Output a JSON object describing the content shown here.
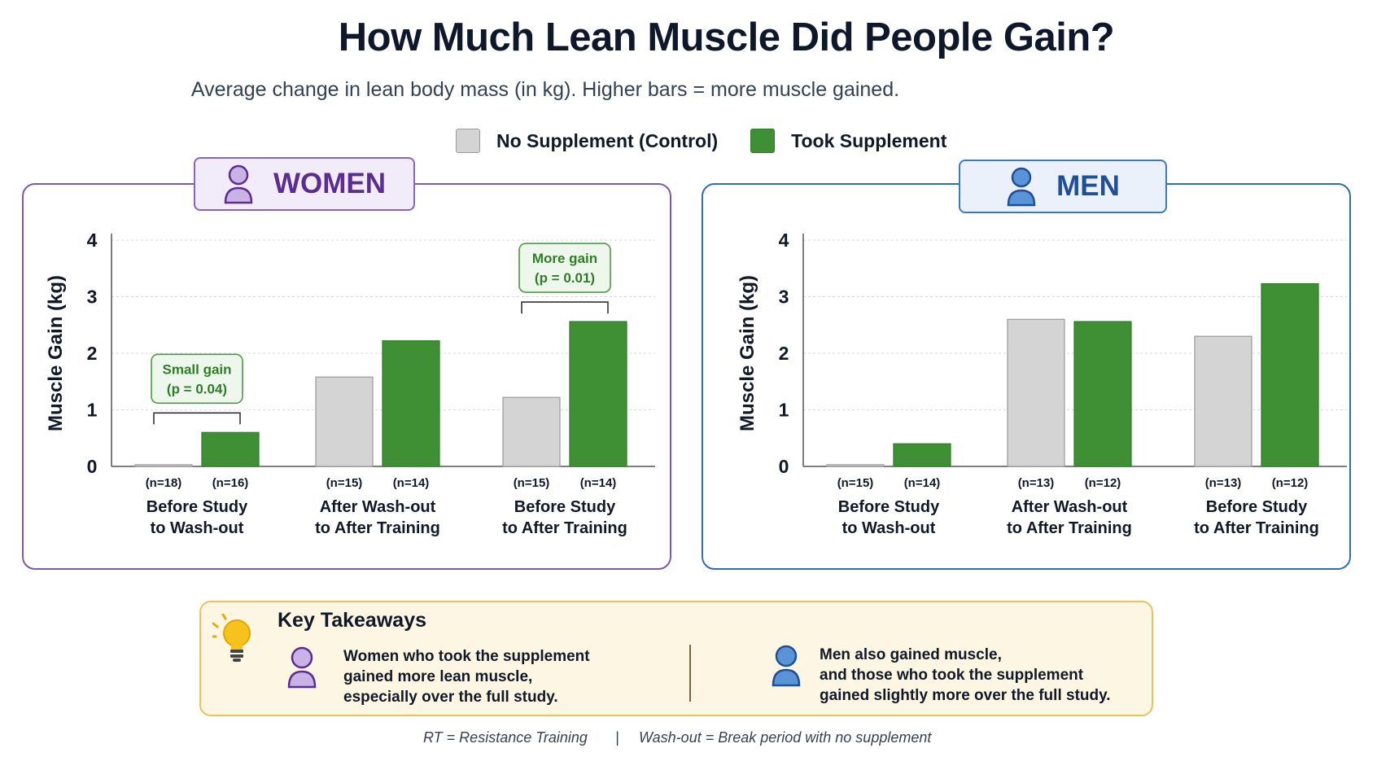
{
  "header": {
    "title": "How Much Lean Muscle Did People Gain?",
    "subtitle": "Average change in lean body mass (in kg). Higher bars = more muscle gained."
  },
  "legend": {
    "items": [
      {
        "label": "No Supplement (Control)",
        "color": "#d4d4d4"
      },
      {
        "label": "Took Supplement",
        "color": "#3f8f35"
      }
    ]
  },
  "colors": {
    "control": "#d4d4d4",
    "control_border": "#9a9a9a",
    "supplement": "#3f8f35",
    "supplement_border": "#2e7a28",
    "women_accent": "#5b2d8e",
    "men_accent": "#1f4f95",
    "annotation": "#2f7d2a"
  },
  "panels": {
    "women": {
      "label": "WOMEN",
      "icon": "person-icon"
    },
    "men": {
      "label": "MEN",
      "icon": "person-icon"
    }
  },
  "chart_data": [
    {
      "type": "bar",
      "panel": "WOMEN",
      "ylabel": "Muscle Gain (kg)",
      "ylim": [
        0,
        4
      ],
      "yticks": [
        0,
        1,
        2,
        3,
        4
      ],
      "grid": true,
      "categories": [
        {
          "line1": "Before Study",
          "line2": "to Wash-out"
        },
        {
          "line1": "After Wash-out",
          "line2": "to After Training"
        },
        {
          "line1": "Before Study",
          "line2": "to After Training"
        }
      ],
      "series": [
        {
          "name": "No Supplement (Control)",
          "values": [
            0.03,
            1.58,
            1.22
          ],
          "n": [
            "(n=18)",
            "(n=15)",
            "(n=15)"
          ]
        },
        {
          "name": "Took Supplement",
          "values": [
            0.6,
            2.22,
            2.56
          ],
          "n": [
            "(n=16)",
            "(n=14)",
            "(n=14)"
          ]
        }
      ],
      "annotations": [
        {
          "category": 0,
          "line1": "Small gain",
          "line2": "(p = 0.04)"
        },
        {
          "category": 2,
          "line1": "More gain",
          "line2": "(p = 0.01)"
        }
      ]
    },
    {
      "type": "bar",
      "panel": "MEN",
      "ylabel": "Muscle Gain (kg)",
      "ylim": [
        0,
        4
      ],
      "yticks": [
        0,
        1,
        2,
        3,
        4
      ],
      "grid": true,
      "categories": [
        {
          "line1": "Before Study",
          "line2": "to Wash-out"
        },
        {
          "line1": "After Wash-out",
          "line2": "to After Training"
        },
        {
          "line1": "Before Study",
          "line2": "to After Training"
        }
      ],
      "series": [
        {
          "name": "No Supplement (Control)",
          "values": [
            0.03,
            2.6,
            2.3
          ],
          "n": [
            "(n=15)",
            "(n=13)",
            "(n=13)"
          ]
        },
        {
          "name": "Took Supplement",
          "values": [
            0.4,
            2.56,
            3.23
          ],
          "n": [
            "(n=14)",
            "(n=12)",
            "(n=12)"
          ]
        }
      ],
      "annotations": []
    }
  ],
  "takeaways": {
    "title": "Key Takeaways",
    "icon": "lightbulb-icon",
    "women_text": "Women who took the supplement\ngained more lean muscle,\nespecially over the full study.",
    "men_text": "Men also gained muscle,\nand those who took the supplement\ngained slightly more over the full study."
  },
  "footnote": {
    "rt": "RT = Resistance Training",
    "separator": "|",
    "washout": "Wash-out = Break period with no supplement"
  }
}
